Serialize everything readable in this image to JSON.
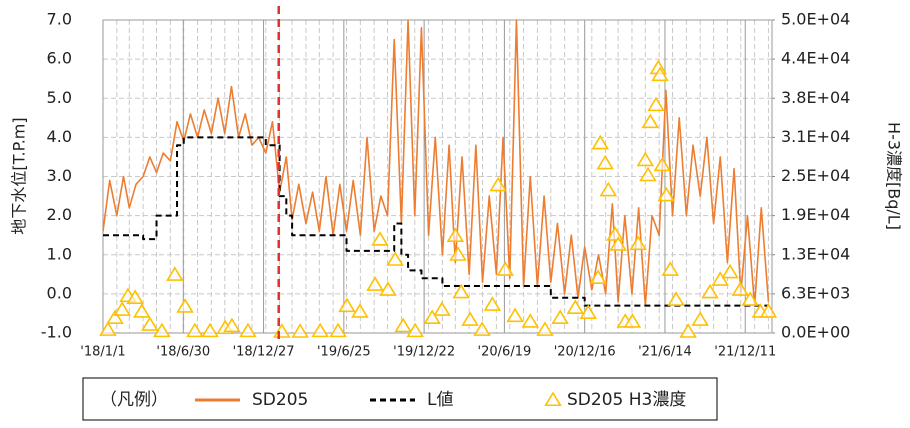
{
  "chart_data": {
    "type": "line",
    "y_label": "地下水位[T.P.m]",
    "y2_label": "H-3濃度[Bq/L]",
    "legend_title": "（凡例）",
    "legend": "bottom",
    "grid": true,
    "xlim": [
      "2018-01-01",
      "2022-02-09"
    ],
    "xticks": [
      {
        "value": "2018-01-01",
        "label": "'18/1/1"
      },
      {
        "value": "2018-06-30",
        "label": "'18/6/30"
      },
      {
        "value": "2018-12-27",
        "label": "'18/12/27"
      },
      {
        "value": "2019-06-25",
        "label": "'19/6/25"
      },
      {
        "value": "2019-12-22",
        "label": "'19/12/22"
      },
      {
        "value": "2020-06-19",
        "label": "'20/6/19"
      },
      {
        "value": "2020-12-16",
        "label": "'20/12/16"
      },
      {
        "value": "2021-06-14",
        "label": "'21/6/14"
      },
      {
        "value": "2021-12-11",
        "label": "'21/12/11"
      }
    ],
    "ylim": [
      -1,
      7
    ],
    "yticks": [
      {
        "value": -1,
        "label": "-1.0"
      },
      {
        "value": 0,
        "label": "0.0"
      },
      {
        "value": 1,
        "label": "1.0"
      },
      {
        "value": 2,
        "label": "2.0"
      },
      {
        "value": 3,
        "label": "3.0"
      },
      {
        "value": 4,
        "label": "4.0"
      },
      {
        "value": 5,
        "label": "5.0"
      },
      {
        "value": 6,
        "label": "6.0"
      },
      {
        "value": 7,
        "label": "7.0"
      }
    ],
    "y2lim": [
      0,
      50000
    ],
    "y2ticks": [
      {
        "value": 0,
        "label": "0.0E+00"
      },
      {
        "value": 6250,
        "label": "6.3E+03"
      },
      {
        "value": 12500,
        "label": "1.3E+04"
      },
      {
        "value": 18750,
        "label": "1.9E+04"
      },
      {
        "value": 25000,
        "label": "2.5E+04"
      },
      {
        "value": 31250,
        "label": "3.1E+04"
      },
      {
        "value": 37500,
        "label": "3.8E+04"
      },
      {
        "value": 43750,
        "label": "4.4E+04"
      },
      {
        "value": 50000,
        "label": "5.0E+04"
      }
    ],
    "vline": {
      "x": "2019-01-30",
      "color": "#E03030"
    },
    "x": [
      "2018-01-01",
      "2018-01-16",
      "2018-02-01",
      "2018-02-16",
      "2018-03-01",
      "2018-03-16",
      "2018-04-01",
      "2018-04-16",
      "2018-05-01",
      "2018-05-16",
      "2018-06-01",
      "2018-06-16",
      "2018-07-01",
      "2018-07-16",
      "2018-08-01",
      "2018-08-16",
      "2018-09-01",
      "2018-09-16",
      "2018-10-01",
      "2018-10-16",
      "2018-11-01",
      "2018-11-16",
      "2018-12-01",
      "2018-12-16",
      "2019-01-01",
      "2019-01-16",
      "2019-02-01",
      "2019-02-16",
      "2019-03-01",
      "2019-03-16",
      "2019-04-01",
      "2019-04-16",
      "2019-05-01",
      "2019-05-16",
      "2019-06-01",
      "2019-06-16",
      "2019-07-01",
      "2019-07-16",
      "2019-08-01",
      "2019-08-16",
      "2019-09-01",
      "2019-09-16",
      "2019-10-01",
      "2019-10-16",
      "2019-11-01",
      "2019-11-16",
      "2019-12-01",
      "2019-12-16",
      "2020-01-01",
      "2020-01-16",
      "2020-02-01",
      "2020-02-16",
      "2020-03-01",
      "2020-03-16",
      "2020-04-01",
      "2020-04-16",
      "2020-05-01",
      "2020-05-16",
      "2020-06-01",
      "2020-06-16",
      "2020-07-01",
      "2020-07-16",
      "2020-08-01",
      "2020-08-16",
      "2020-09-01",
      "2020-09-16",
      "2020-10-01",
      "2020-10-16",
      "2020-11-01",
      "2020-11-16",
      "2020-12-01",
      "2020-12-16",
      "2021-01-01",
      "2021-01-16",
      "2021-02-01",
      "2021-02-16",
      "2021-03-01",
      "2021-03-16",
      "2021-04-01",
      "2021-04-16",
      "2021-05-01",
      "2021-05-16",
      "2021-06-01",
      "2021-06-16",
      "2021-07-01",
      "2021-07-16",
      "2021-08-01",
      "2021-08-16",
      "2021-09-01",
      "2021-09-16",
      "2021-10-01",
      "2021-10-16",
      "2021-11-01",
      "2021-11-16",
      "2021-12-01",
      "2021-12-16",
      "2022-01-01",
      "2022-01-16",
      "2022-02-01"
    ],
    "series": [
      {
        "name": "SD205",
        "color": "#ED7D31",
        "line_style": "solid",
        "values": [
          1.6,
          2.9,
          2.0,
          3.0,
          2.2,
          2.8,
          3.0,
          3.5,
          3.1,
          3.6,
          3.4,
          4.4,
          3.9,
          4.6,
          4.0,
          4.7,
          4.1,
          5.0,
          4.1,
          5.3,
          4.0,
          4.6,
          3.8,
          4.0,
          3.6,
          4.4,
          2.6,
          3.5,
          1.9,
          2.8,
          1.8,
          2.6,
          1.6,
          3.0,
          1.5,
          2.8,
          1.6,
          2.9,
          1.5,
          4.0,
          1.6,
          2.5,
          2.0,
          6.5,
          1.8,
          7.0,
          2.0,
          6.8,
          1.5,
          4.0,
          1.0,
          3.8,
          0.8,
          3.5,
          0.5,
          3.8,
          0.3,
          2.5,
          0.5,
          4.0,
          0.4,
          7.0,
          0.2,
          3.0,
          0.2,
          2.5,
          0.3,
          1.8,
          0.0,
          1.5,
          -0.1,
          1.2,
          0.1,
          1.0,
          0.0,
          2.3,
          -0.2,
          2.0,
          0.0,
          2.2,
          -0.3,
          2.0,
          1.5,
          5.2,
          2.0,
          4.5,
          2.0,
          3.8,
          2.5,
          4.0,
          1.8,
          3.5,
          0.8,
          3.2,
          0.0,
          2.0,
          -0.3,
          2.2,
          -0.2
        ]
      },
      {
        "name": "L値",
        "color": "#000000",
        "line_style": "dashed",
        "step": true,
        "values": [
          1.5,
          1.5,
          1.5,
          1.5,
          1.5,
          1.5,
          1.4,
          1.4,
          2.0,
          2.0,
          2.0,
          3.8,
          4.0,
          4.0,
          4.0,
          4.0,
          4.0,
          4.0,
          4.0,
          4.0,
          4.0,
          4.0,
          4.0,
          4.0,
          3.8,
          3.8,
          2.5,
          2.0,
          1.5,
          1.5,
          1.5,
          1.5,
          1.5,
          1.5,
          1.5,
          1.5,
          1.1,
          1.1,
          1.1,
          1.1,
          1.1,
          1.1,
          1.1,
          1.8,
          1.0,
          0.6,
          0.6,
          0.4,
          0.4,
          0.4,
          0.2,
          0.2,
          0.2,
          0.2,
          0.2,
          0.2,
          0.2,
          0.2,
          0.2,
          0.2,
          0.2,
          0.2,
          0.2,
          0.2,
          0.2,
          0.2,
          -0.1,
          -0.1,
          -0.1,
          -0.1,
          -0.1,
          -0.3,
          -0.3,
          -0.3,
          -0.3,
          -0.3,
          -0.3,
          -0.3,
          -0.3,
          -0.3,
          -0.3,
          -0.3,
          -0.3,
          -0.3,
          -0.3,
          -0.3,
          -0.3,
          -0.3,
          -0.3,
          -0.3,
          -0.3,
          -0.3,
          -0.3,
          -0.3,
          -0.3,
          -0.3,
          -0.3,
          -0.3,
          -0.3
        ]
      },
      {
        "name": "SD205 H3濃度",
        "type": "scatter",
        "marker": "triangle",
        "color": "#FFC000",
        "axis": "y2",
        "x": [
          "2018-01-12",
          "2018-01-28",
          "2018-02-13",
          "2018-02-26",
          "2018-03-14",
          "2018-03-29",
          "2018-04-16",
          "2018-05-13",
          "2018-06-11",
          "2018-07-04",
          "2018-07-26",
          "2018-08-29",
          "2018-10-02",
          "2018-10-17",
          "2018-11-22",
          "2019-02-06",
          "2019-03-19",
          "2019-05-03",
          "2019-06-12",
          "2019-07-02",
          "2019-07-31",
          "2019-09-03",
          "2019-09-14",
          "2019-10-02",
          "2019-10-18",
          "2019-11-05",
          "2019-12-02",
          "2020-01-09",
          "2020-01-31",
          "2020-03-01",
          "2020-03-07",
          "2020-03-14",
          "2020-04-03",
          "2020-04-30",
          "2020-05-23",
          "2020-06-05",
          "2020-06-21",
          "2020-07-13",
          "2020-08-16",
          "2020-09-18",
          "2020-10-22",
          "2020-11-25",
          "2020-12-24",
          "2021-01-15",
          "2021-01-20",
          "2021-01-31",
          "2021-02-07",
          "2021-02-22",
          "2021-03-01",
          "2021-03-17",
          "2021-04-02",
          "2021-04-15",
          "2021-05-01",
          "2021-05-07",
          "2021-05-12",
          "2021-05-25",
          "2021-05-30",
          "2021-06-03",
          "2021-06-08",
          "2021-06-17",
          "2021-06-26",
          "2021-07-09",
          "2021-08-05",
          "2021-09-01",
          "2021-09-23",
          "2021-10-16",
          "2021-11-07",
          "2021-11-30",
          "2021-12-22",
          "2022-01-14",
          "2022-02-01"
        ],
        "values": [
          500,
          2400,
          3700,
          5900,
          5600,
          3400,
          1300,
          300,
          9300,
          4200,
          300,
          300,
          800,
          1100,
          300,
          200,
          200,
          300,
          300,
          4300,
          3400,
          7700,
          14900,
          6900,
          11700,
          1100,
          300,
          2400,
          3700,
          15500,
          12500,
          6500,
          2100,
          500,
          4500,
          23600,
          10100,
          2700,
          1800,
          500,
          2400,
          4000,
          3200,
          8800,
          30300,
          27100,
          22800,
          15700,
          14100,
          1800,
          1800,
          14200,
          27600,
          25200,
          33700,
          36400,
          42300,
          41200,
          26800,
          22000,
          10100,
          5300,
          200,
          2100,
          6500,
          8500,
          9700,
          6900,
          5300,
          3400,
          3400
        ]
      }
    ]
  }
}
